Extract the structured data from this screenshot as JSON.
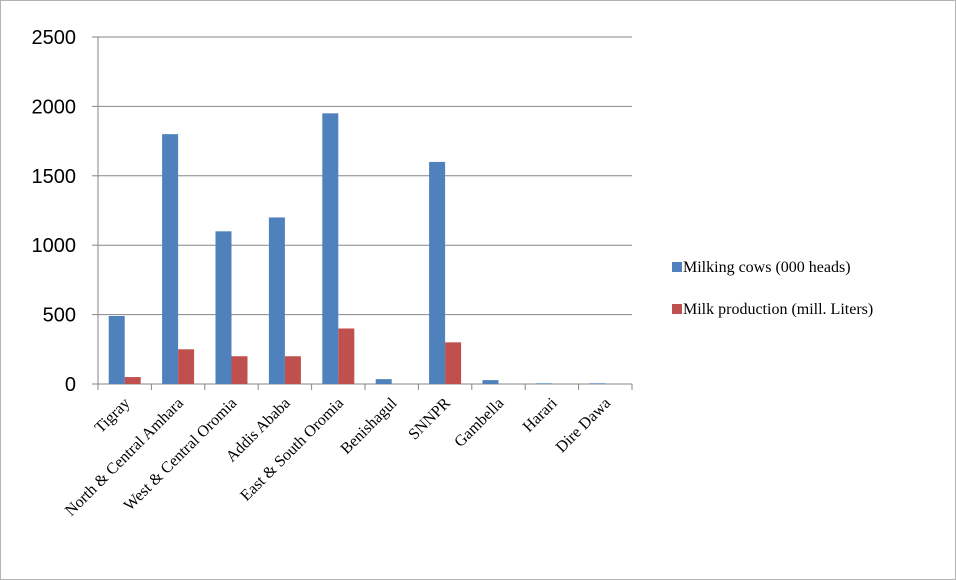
{
  "chart_data": {
    "type": "bar",
    "categories": [
      "Tigray",
      "North & Central Amhara",
      "West & Central Oromia",
      "Addis Ababa",
      "East & South Oromia",
      "Benishagul",
      "SNNPR",
      "Gambella",
      "Harari",
      "Dire Dawa"
    ],
    "series": [
      {
        "name": "Milking cows (000 heads)",
        "color": "#4F81BD",
        "values": [
          490,
          1800,
          1100,
          1200,
          1950,
          35,
          1600,
          28,
          5,
          5
        ]
      },
      {
        "name": "Milk production (mill. Liters)",
        "color": "#C0504D",
        "values": [
          50,
          250,
          200,
          200,
          400,
          0,
          300,
          0,
          0,
          0
        ]
      }
    ],
    "y_ticks": [
      "0",
      "500",
      "1000",
      "1500",
      "2000",
      "2500"
    ],
    "ylim": [
      0,
      2500
    ],
    "grid": true,
    "legend_position": "right"
  }
}
